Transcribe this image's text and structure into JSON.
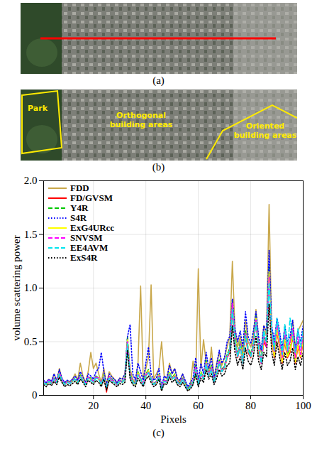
{
  "images": [
    {
      "caption": "(a)",
      "line": {
        "color": "#ff0000"
      }
    },
    {
      "caption": "(b)",
      "color": "#ffeb00",
      "regions": [
        {
          "label": "Park"
        },
        {
          "label": "Orthogonal building areas"
        },
        {
          "label": "Oriented building areas"
        }
      ]
    }
  ],
  "chart_data": {
    "type": "line",
    "caption": "(c)",
    "x_label": "Pixels",
    "y_label": "volume scattering power",
    "xlim": [
      1,
      100
    ],
    "xticks": [
      20,
      40,
      60,
      80,
      100
    ],
    "ylim": [
      0,
      2
    ],
    "yticks": [
      0,
      0.5,
      {
        "value": 1,
        "label": "1.0"
      },
      1.5,
      {
        "value": 2,
        "label": "2.0"
      }
    ],
    "grid": true,
    "legend": "top-left",
    "x": [
      1,
      2,
      3,
      4,
      5,
      6,
      7,
      8,
      9,
      10,
      11,
      12,
      13,
      14,
      15,
      16,
      17,
      18,
      19,
      20,
      21,
      22,
      23,
      24,
      25,
      26,
      27,
      28,
      29,
      30,
      31,
      32,
      33,
      34,
      35,
      36,
      37,
      38,
      39,
      40,
      41,
      42,
      43,
      44,
      45,
      46,
      47,
      48,
      49,
      50,
      51,
      52,
      53,
      54,
      55,
      56,
      57,
      58,
      59,
      60,
      61,
      62,
      63,
      64,
      65,
      66,
      67,
      68,
      69,
      70,
      71,
      72,
      73,
      74,
      75,
      76,
      77,
      78,
      79,
      80,
      81,
      82,
      83,
      84,
      85,
      86,
      87,
      88,
      89,
      90,
      91,
      92,
      93,
      94,
      95,
      96,
      97,
      98,
      99,
      100
    ],
    "series": [
      {
        "name": "FDD",
        "color": "#c9a84c",
        "line_style": "solid",
        "values": [
          0.12,
          0.1,
          0.15,
          0.12,
          0.2,
          0.13,
          0.25,
          0.15,
          0.1,
          0.14,
          0.12,
          0.15,
          0.2,
          0.14,
          0.3,
          0.18,
          0.12,
          0.22,
          0.4,
          0.25,
          0.3,
          0.2,
          0.12,
          0.25,
          0.1,
          0.22,
          0.18,
          0.15,
          0.12,
          0.16,
          0.15,
          0.2,
          0.45,
          0.25,
          0.15,
          0.12,
          0.3,
          1.02,
          0.15,
          0.25,
          0.35,
          1.03,
          0.15,
          0.2,
          0.25,
          0.5,
          0.18,
          0.15,
          0.3,
          0.2,
          0.25,
          0.15,
          0.12,
          0.2,
          0.12,
          0.06,
          0.1,
          0.32,
          0.15,
          1.18,
          0.25,
          0.52,
          0.3,
          0.2,
          0.45,
          0.15,
          0.3,
          0.4,
          0.28,
          0.35,
          0.45,
          0.55,
          1.25,
          0.6,
          0.45,
          0.55,
          0.4,
          0.7,
          0.5,
          0.45,
          0.55,
          0.8,
          0.5,
          0.4,
          0.65,
          0.55,
          1.78,
          0.6,
          0.45,
          0.7,
          0.55,
          0.4,
          0.65,
          0.45,
          0.5,
          0.7,
          0.45,
          0.6,
          0.65,
          0.7
        ]
      },
      {
        "name": "FD/GVSM",
        "color": "#ff0000",
        "line_style": "solid",
        "values": [
          0.12,
          0.1,
          0.13,
          0.11,
          0.15,
          0.12,
          0.2,
          0.14,
          0.1,
          0.12,
          0.11,
          0.13,
          0.15,
          0.12,
          0.18,
          0.14,
          0.1,
          0.16,
          0.15,
          0.12,
          0.17,
          0.15,
          0.1,
          0.18,
          0.03,
          0.17,
          0.14,
          0.12,
          0.1,
          0.13,
          0.12,
          0.15,
          0.5,
          0.18,
          0.12,
          0.1,
          0.2,
          0.15,
          0.1,
          0.18,
          0.22,
          0.15,
          0.1,
          0.12,
          0.18,
          0.05,
          0.14,
          0.12,
          0.2,
          0.15,
          0.18,
          0.12,
          0.1,
          0.15,
          0.1,
          0.05,
          0.08,
          0.12,
          0.25,
          0.1,
          0.2,
          0.15,
          0.3,
          0.18,
          0.25,
          0.12,
          0.2,
          0.3,
          0.22,
          0.25,
          0.35,
          0.4,
          0.8,
          0.5,
          0.35,
          0.45,
          0.3,
          0.55,
          0.4,
          0.35,
          0.45,
          0.7,
          0.4,
          0.3,
          0.5,
          0.45,
          1.1,
          0.5,
          0.35,
          0.6,
          0.45,
          0.3,
          0.5,
          0.35,
          0.4,
          0.55,
          0.3,
          0.45,
          0.35,
          0.5
        ]
      },
      {
        "name": "Y4R",
        "color": "#00c800",
        "line_style": "dashed",
        "values": [
          0.13,
          0.11,
          0.14,
          0.12,
          0.16,
          0.13,
          0.22,
          0.15,
          0.11,
          0.13,
          0.12,
          0.14,
          0.16,
          0.13,
          0.19,
          0.15,
          0.11,
          0.17,
          0.16,
          0.13,
          0.18,
          0.16,
          0.11,
          0.19,
          0.08,
          0.18,
          0.15,
          0.13,
          0.11,
          0.14,
          0.13,
          0.16,
          0.55,
          0.2,
          0.13,
          0.11,
          0.22,
          0.16,
          0.11,
          0.2,
          0.24,
          0.16,
          0.11,
          0.13,
          0.2,
          0.06,
          0.15,
          0.13,
          0.22,
          0.16,
          0.2,
          0.13,
          0.11,
          0.16,
          0.11,
          0.06,
          0.09,
          0.13,
          0.28,
          0.11,
          0.22,
          0.16,
          0.33,
          0.2,
          0.28,
          0.13,
          0.22,
          0.33,
          0.24,
          0.28,
          0.38,
          0.44,
          0.88,
          0.55,
          0.38,
          0.5,
          0.33,
          0.6,
          0.44,
          0.38,
          0.5,
          0.75,
          0.44,
          0.33,
          0.55,
          0.5,
          1.2,
          0.55,
          0.38,
          0.65,
          0.5,
          0.33,
          0.55,
          0.38,
          0.44,
          0.6,
          0.33,
          0.5,
          0.38,
          0.55
        ]
      },
      {
        "name": "S4R",
        "color": "#0000ff",
        "line_style": "dotted",
        "values": [
          0.14,
          0.12,
          0.15,
          0.13,
          0.2,
          0.14,
          0.24,
          0.16,
          0.12,
          0.14,
          0.13,
          0.15,
          0.18,
          0.14,
          0.22,
          0.17,
          0.12,
          0.2,
          0.18,
          0.15,
          0.22,
          0.25,
          0.4,
          0.22,
          0.1,
          0.2,
          0.17,
          0.15,
          0.12,
          0.16,
          0.15,
          0.2,
          0.55,
          0.66,
          0.2,
          0.14,
          0.3,
          0.22,
          0.14,
          0.3,
          0.45,
          0.2,
          0.14,
          0.16,
          0.25,
          0.08,
          0.18,
          0.16,
          0.28,
          0.2,
          0.25,
          0.16,
          0.14,
          0.2,
          0.14,
          0.08,
          0.12,
          0.16,
          0.35,
          0.14,
          0.3,
          0.2,
          0.4,
          0.25,
          0.35,
          0.16,
          0.28,
          0.42,
          0.3,
          0.35,
          0.5,
          0.55,
          0.9,
          0.62,
          0.5,
          0.6,
          0.45,
          0.78,
          0.55,
          0.48,
          0.6,
          0.78,
          0.55,
          0.42,
          0.65,
          0.6,
          1.35,
          0.65,
          0.5,
          0.72,
          0.6,
          0.42,
          0.65,
          0.5,
          0.55,
          0.7,
          0.42,
          0.6,
          0.5,
          0.65
        ]
      },
      {
        "name": "ExG4URcc",
        "color": "#ffff00",
        "line_style": "solid",
        "values": [
          0.12,
          0.1,
          0.13,
          0.12,
          0.15,
          0.13,
          0.21,
          0.14,
          0.1,
          0.12,
          0.12,
          0.13,
          0.15,
          0.12,
          0.18,
          0.15,
          0.1,
          0.16,
          0.15,
          0.12,
          0.17,
          0.15,
          0.1,
          0.18,
          0.07,
          0.17,
          0.14,
          0.12,
          0.1,
          0.13,
          0.12,
          0.15,
          0.52,
          0.19,
          0.12,
          0.1,
          0.21,
          0.15,
          0.1,
          0.19,
          0.23,
          0.15,
          0.1,
          0.12,
          0.19,
          0.05,
          0.14,
          0.12,
          0.21,
          0.15,
          0.19,
          0.12,
          0.1,
          0.15,
          0.1,
          0.05,
          0.08,
          0.12,
          0.26,
          0.1,
          0.21,
          0.15,
          0.31,
          0.19,
          0.26,
          0.12,
          0.21,
          0.31,
          0.23,
          0.26,
          0.36,
          0.42,
          0.84,
          0.52,
          0.36,
          0.47,
          0.31,
          0.57,
          0.42,
          0.36,
          0.47,
          0.72,
          0.42,
          0.31,
          0.52,
          0.47,
          1.15,
          0.52,
          0.36,
          0.62,
          0.47,
          0.31,
          0.52,
          0.36,
          0.42,
          0.57,
          0.31,
          0.47,
          0.36,
          0.52
        ]
      },
      {
        "name": "SNVSM",
        "color": "#ff00ff",
        "line_style": "dashed",
        "values": [
          0.13,
          0.1,
          0.14,
          0.12,
          0.16,
          0.12,
          0.21,
          0.15,
          0.1,
          0.13,
          0.11,
          0.14,
          0.15,
          0.13,
          0.18,
          0.14,
          0.11,
          0.17,
          0.15,
          0.13,
          0.17,
          0.16,
          0.11,
          0.18,
          0.07,
          0.18,
          0.14,
          0.13,
          0.1,
          0.14,
          0.12,
          0.16,
          0.5,
          0.2,
          0.12,
          0.11,
          0.2,
          0.16,
          0.1,
          0.19,
          0.22,
          0.16,
          0.1,
          0.13,
          0.18,
          0.06,
          0.14,
          0.13,
          0.2,
          0.16,
          0.18,
          0.13,
          0.1,
          0.16,
          0.1,
          0.06,
          0.08,
          0.13,
          0.26,
          0.1,
          0.2,
          0.16,
          0.3,
          0.19,
          0.26,
          0.12,
          0.2,
          0.32,
          0.22,
          0.27,
          0.36,
          0.42,
          0.86,
          0.5,
          0.36,
          0.48,
          0.3,
          0.58,
          0.42,
          0.36,
          0.48,
          0.7,
          0.45,
          0.3,
          0.55,
          0.45,
          1.1,
          0.55,
          0.4,
          0.68,
          0.5,
          0.35,
          0.6,
          0.4,
          0.5,
          0.62,
          0.35,
          0.55,
          0.38,
          0.58
        ]
      },
      {
        "name": "EE4AVM",
        "color": "#00e5ee",
        "line_style": "dashed",
        "values": [
          0.12,
          0.1,
          0.13,
          0.11,
          0.15,
          0.12,
          0.2,
          0.14,
          0.1,
          0.12,
          0.11,
          0.13,
          0.15,
          0.12,
          0.17,
          0.14,
          0.1,
          0.16,
          0.14,
          0.12,
          0.16,
          0.15,
          0.1,
          0.17,
          0.07,
          0.16,
          0.13,
          0.12,
          0.1,
          0.13,
          0.12,
          0.15,
          0.48,
          0.18,
          0.12,
          0.1,
          0.19,
          0.15,
          0.1,
          0.18,
          0.21,
          0.15,
          0.1,
          0.12,
          0.17,
          0.05,
          0.13,
          0.12,
          0.2,
          0.15,
          0.17,
          0.12,
          0.1,
          0.15,
          0.1,
          0.05,
          0.08,
          0.12,
          0.24,
          0.1,
          0.2,
          0.15,
          0.29,
          0.18,
          0.24,
          0.12,
          0.2,
          0.3,
          0.22,
          0.26,
          0.36,
          0.42,
          0.8,
          0.5,
          0.36,
          0.46,
          0.3,
          0.56,
          0.42,
          0.36,
          0.46,
          0.68,
          0.44,
          0.3,
          0.6,
          0.5,
          1.05,
          0.6,
          0.42,
          0.72,
          0.55,
          0.38,
          0.66,
          0.42,
          0.72,
          0.55,
          0.4,
          0.62,
          0.45,
          0.6
        ]
      },
      {
        "name": "ExS4R",
        "color": "#000000",
        "line_style": "dotted",
        "values": [
          0.1,
          0.08,
          0.11,
          0.09,
          0.13,
          0.1,
          0.17,
          0.12,
          0.08,
          0.1,
          0.09,
          0.11,
          0.13,
          0.1,
          0.15,
          0.12,
          0.08,
          0.14,
          0.12,
          0.1,
          0.14,
          0.12,
          0.08,
          0.15,
          0.05,
          0.14,
          0.12,
          0.1,
          0.08,
          0.11,
          0.1,
          0.12,
          0.42,
          0.15,
          0.1,
          0.08,
          0.16,
          0.12,
          0.08,
          0.15,
          0.18,
          0.12,
          0.08,
          0.1,
          0.15,
          0.04,
          0.11,
          0.1,
          0.17,
          0.12,
          0.15,
          0.1,
          0.08,
          0.12,
          0.08,
          0.04,
          0.06,
          0.1,
          0.2,
          0.08,
          0.16,
          0.12,
          0.24,
          0.15,
          0.2,
          0.1,
          0.16,
          0.24,
          0.18,
          0.2,
          0.28,
          0.3,
          0.65,
          0.4,
          0.28,
          0.36,
          0.24,
          0.44,
          0.32,
          0.28,
          0.36,
          0.55,
          0.32,
          0.24,
          0.4,
          0.36,
          0.85,
          0.4,
          0.28,
          0.5,
          0.36,
          0.24,
          0.4,
          0.28,
          0.32,
          0.44,
          0.24,
          0.36,
          0.28,
          0.4
        ]
      }
    ]
  }
}
